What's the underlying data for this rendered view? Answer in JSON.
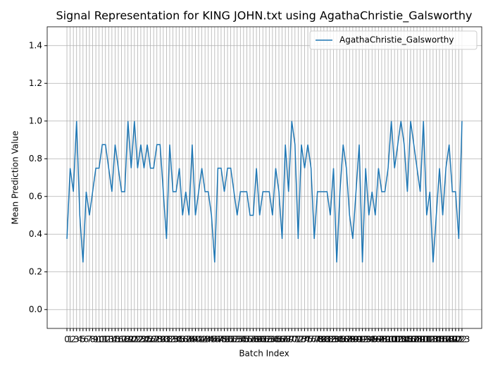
{
  "chart_data": {
    "type": "line",
    "title": "Signal Representation for KING JOHN.txt using AgathaChristie_Galsworthy",
    "x_label": "Batch Index",
    "y_label": "Mean Prediction Value",
    "x": [
      0,
      1,
      2,
      3,
      4,
      5,
      6,
      7,
      8,
      9,
      10,
      11,
      12,
      13,
      14,
      15,
      16,
      17,
      18,
      19,
      20,
      21,
      22,
      23,
      24,
      25,
      26,
      27,
      28,
      29,
      30,
      31,
      32,
      33,
      34,
      35,
      36,
      37,
      38,
      39,
      40,
      41,
      42,
      43,
      44,
      45,
      46,
      47,
      48,
      49,
      50,
      51,
      52,
      53,
      54,
      55,
      56,
      57,
      58,
      59,
      60,
      61,
      62,
      63,
      64,
      65,
      66,
      67,
      68,
      69,
      70,
      71,
      72,
      73,
      74,
      75,
      76,
      77,
      78,
      79,
      80,
      81,
      82,
      83,
      84,
      85,
      86,
      87,
      88,
      89,
      90,
      91,
      92,
      93,
      94,
      95,
      96,
      97,
      98,
      99,
      100,
      101,
      102,
      103,
      104,
      105,
      106,
      107,
      108,
      109,
      110,
      111,
      112,
      113,
      114,
      115,
      116,
      117,
      118,
      119,
      120,
      121,
      122,
      123
    ],
    "series": [
      {
        "name": "AgathaChristie_Galsworthy",
        "color": "#1f77b4",
        "values": [
          0.375,
          0.75,
          0.625,
          1.0,
          0.5,
          0.25,
          0.625,
          0.5,
          0.625,
          0.75,
          0.75,
          0.875,
          0.875,
          0.75,
          0.625,
          0.875,
          0.75,
          0.625,
          0.625,
          1.0,
          0.75,
          1.0,
          0.75,
          0.875,
          0.75,
          0.875,
          0.75,
          0.75,
          0.875,
          0.875,
          0.625,
          0.375,
          0.875,
          0.625,
          0.625,
          0.75,
          0.5,
          0.625,
          0.5,
          0.875,
          0.5,
          0.625,
          0.75,
          0.625,
          0.625,
          0.5,
          0.25,
          0.75,
          0.75,
          0.625,
          0.75,
          0.75,
          0.625,
          0.5,
          0.625,
          0.625,
          0.625,
          0.5,
          0.5,
          0.75,
          0.5,
          0.625,
          0.625,
          0.625,
          0.5,
          0.75,
          0.625,
          0.375,
          0.875,
          0.625,
          1.0,
          0.875,
          0.375,
          0.875,
          0.75,
          0.875,
          0.75,
          0.375,
          0.625,
          0.625,
          0.625,
          0.625,
          0.5,
          0.75,
          0.25,
          0.625,
          0.875,
          0.75,
          0.5,
          0.375,
          0.625,
          0.875,
          0.25,
          0.75,
          0.5,
          0.625,
          0.5,
          0.75,
          0.625,
          0.625,
          0.75,
          1.0,
          0.75,
          0.875,
          1.0,
          0.875,
          0.625,
          1.0,
          0.875,
          0.75,
          0.625,
          1.0,
          0.5,
          0.625,
          0.25,
          0.5,
          0.75,
          0.5,
          0.75,
          0.875,
          0.625,
          0.625,
          0.375,
          1.0
        ]
      }
    ],
    "xlim": [
      -6.15,
      129.15
    ],
    "ylim": [
      -0.1,
      1.5
    ],
    "xticks": [
      0,
      1,
      2,
      3,
      4,
      5,
      6,
      7,
      8,
      9,
      10,
      11,
      12,
      13,
      14,
      15,
      16,
      17,
      18,
      19,
      20,
      21,
      22,
      23,
      24,
      25,
      26,
      27,
      28,
      29,
      30,
      31,
      32,
      33,
      34,
      35,
      36,
      37,
      38,
      39,
      40,
      41,
      42,
      43,
      44,
      45,
      46,
      47,
      48,
      49,
      50,
      51,
      52,
      53,
      54,
      55,
      56,
      57,
      58,
      59,
      60,
      61,
      62,
      63,
      64,
      65,
      66,
      67,
      68,
      69,
      70,
      71,
      72,
      73,
      74,
      75,
      76,
      77,
      78,
      79,
      80,
      81,
      82,
      83,
      84,
      85,
      86,
      87,
      88,
      89,
      90,
      91,
      92,
      93,
      94,
      95,
      96,
      97,
      98,
      99,
      100,
      101,
      102,
      103,
      104,
      105,
      106,
      107,
      108,
      109,
      110,
      111,
      112,
      113,
      114,
      115,
      116,
      117,
      118,
      119,
      120,
      121,
      122,
      123
    ],
    "yticks": [
      {
        "value": 0,
        "label": "0.0"
      },
      {
        "value": 0.2,
        "label": "0.2"
      },
      {
        "value": 0.4,
        "label": "0.4"
      },
      {
        "value": 0.6,
        "label": "0.6"
      },
      {
        "value": 0.8,
        "label": "0.8"
      },
      {
        "value": 1,
        "label": "1.0"
      },
      {
        "value": 1.2,
        "label": "1.2"
      },
      {
        "value": 1.4,
        "label": "1.4"
      }
    ],
    "grid": true,
    "legend": "upper right"
  }
}
